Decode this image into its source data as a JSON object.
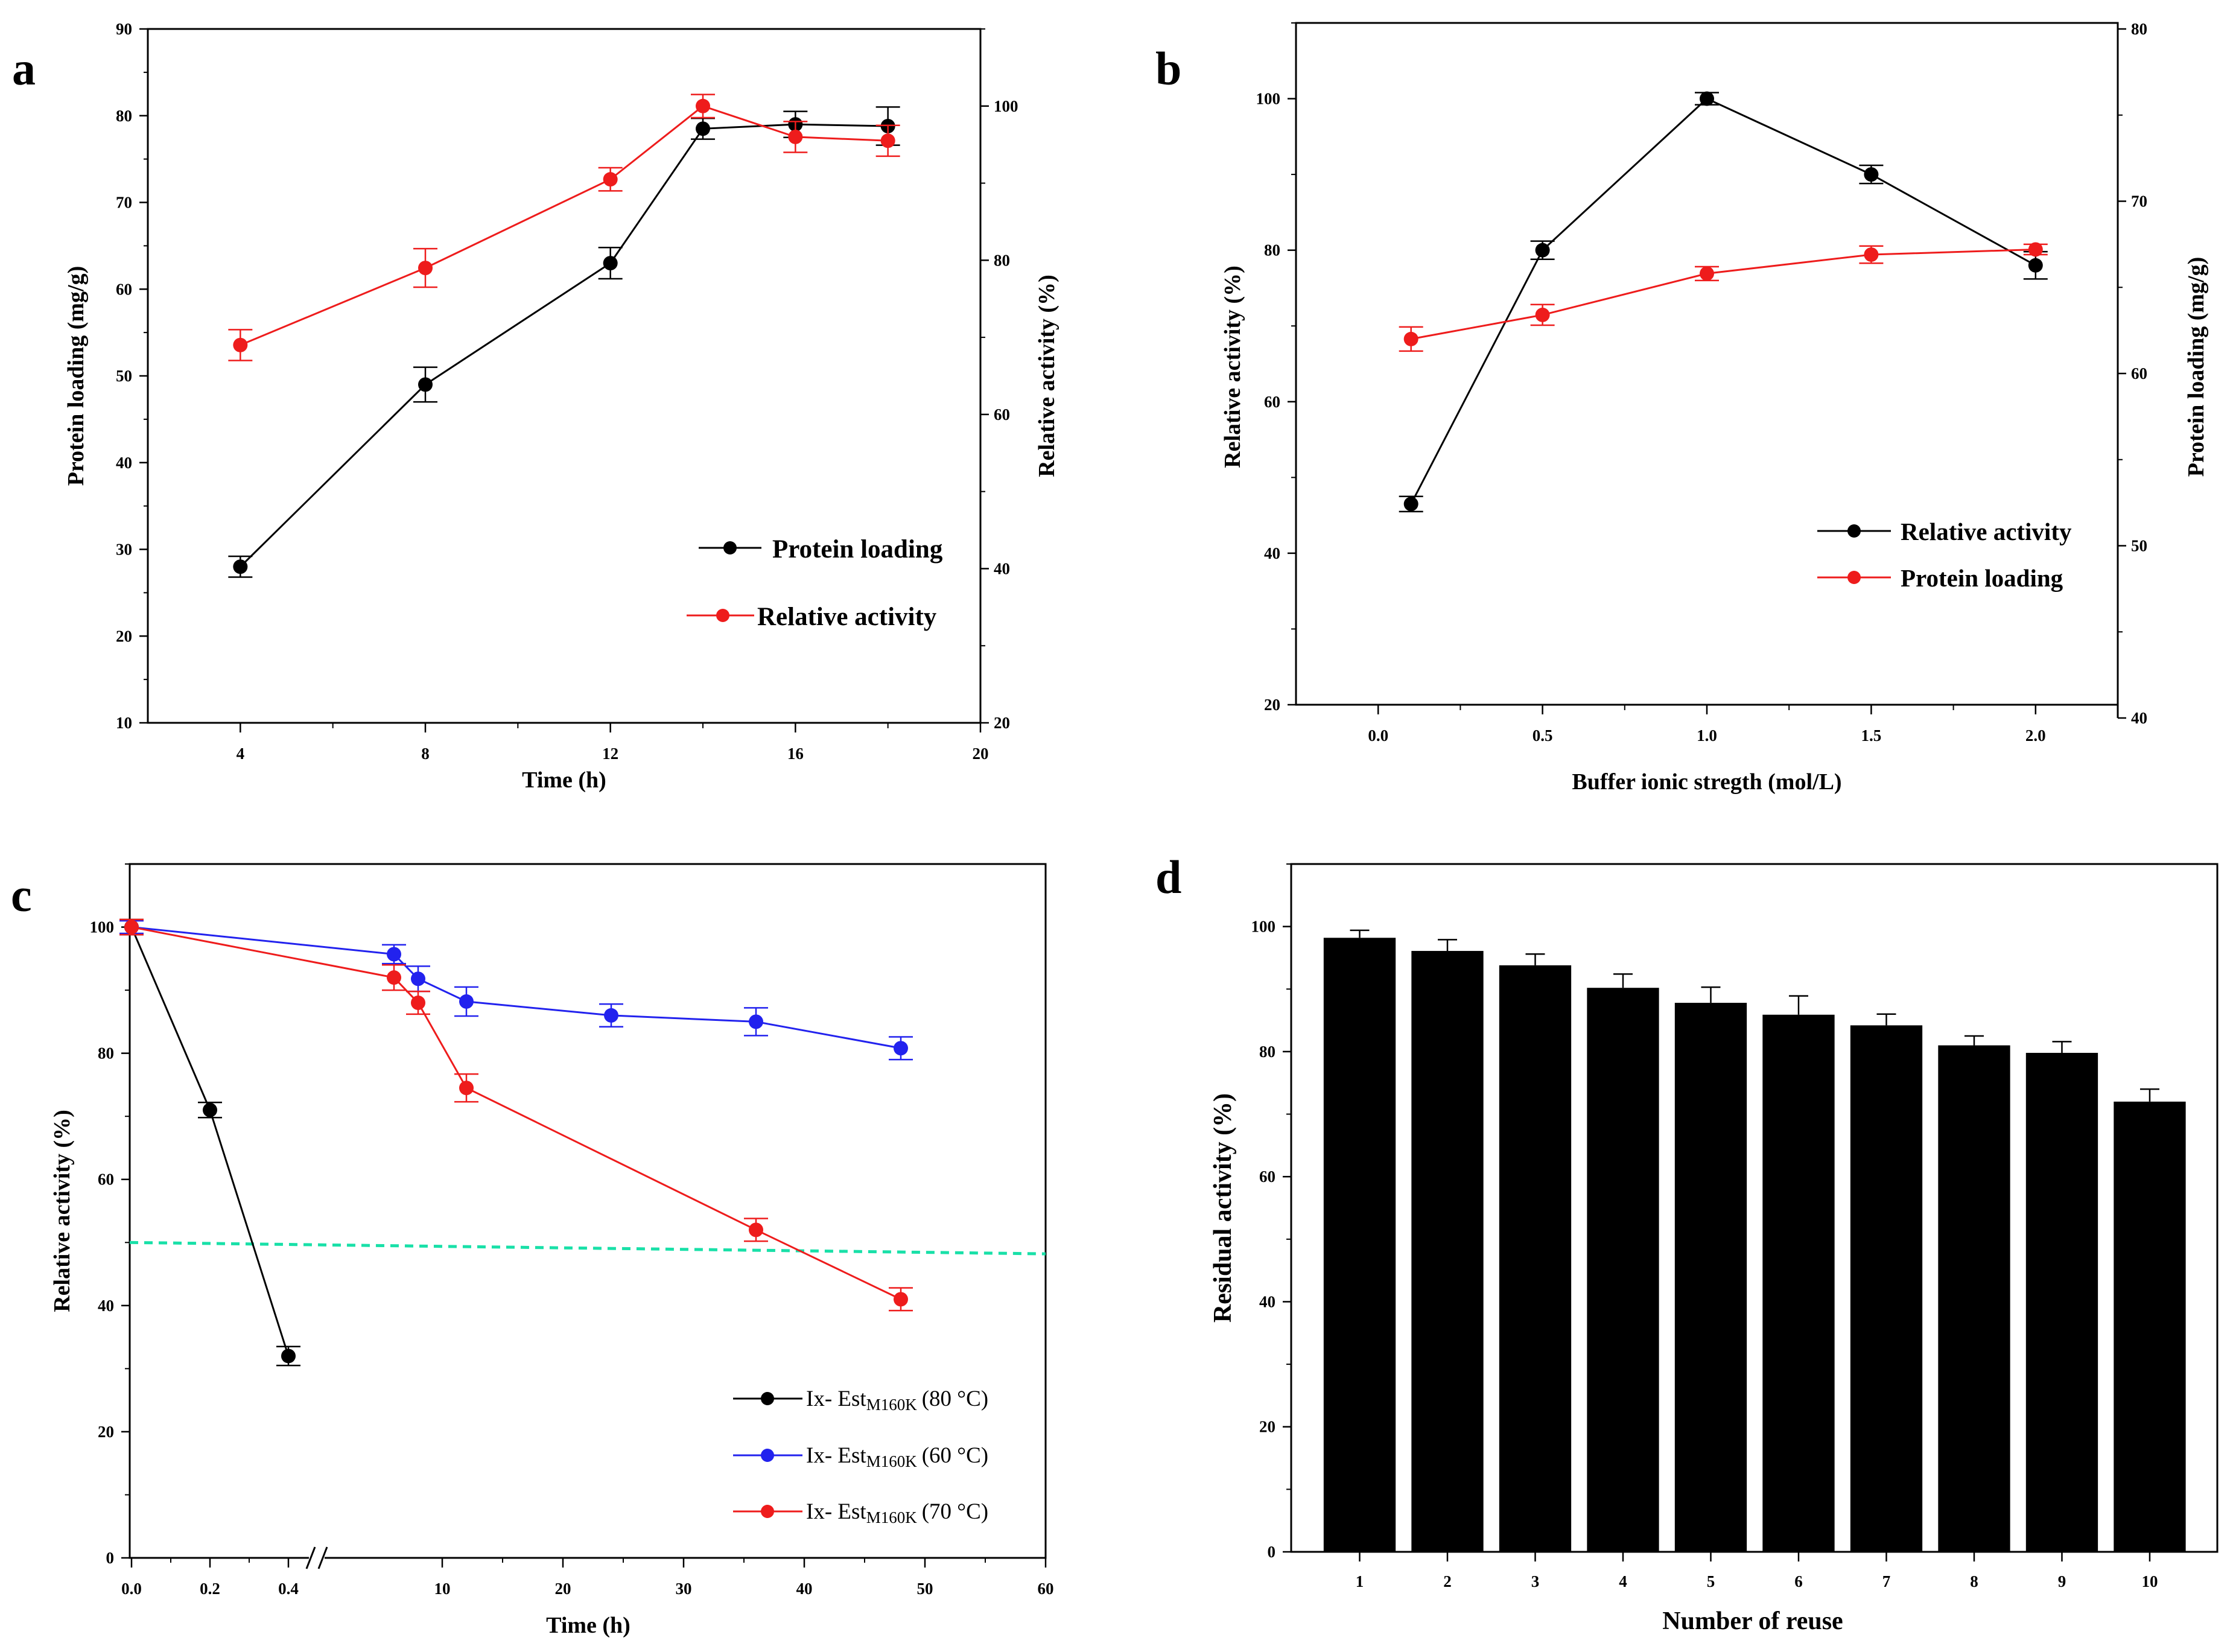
{
  "figure": {
    "colors": {
      "black": "#000000",
      "red": "#ee1c1c",
      "blue": "#2222ee",
      "cyan": "#19e0a8",
      "bar": "#000000"
    }
  },
  "chart_data": [
    {
      "id": "a",
      "panel_label": "a",
      "type": "line",
      "xlabel": "Time (h)",
      "ylabel_left": "Protein loading (mg/g)",
      "ylabel_right": "Relative activity (%)",
      "xlim": [
        2,
        20
      ],
      "xticks": [
        "4",
        "8",
        "12",
        "16",
        "20"
      ],
      "ylim_left": [
        10,
        90
      ],
      "yticks_left": [
        "10",
        "20",
        "30",
        "40",
        "50",
        "60",
        "70",
        "80",
        "90"
      ],
      "ylim_right": [
        20,
        110
      ],
      "yticks_right": [
        "20",
        "40",
        "60",
        "80",
        "100"
      ],
      "series": [
        {
          "name": "Protein loading",
          "color": "#000000",
          "axis": "left",
          "x": [
            4,
            8,
            12,
            14,
            16,
            18
          ],
          "values": [
            28,
            49,
            63,
            78.5,
            79,
            78.8
          ],
          "errors": [
            1.2,
            2.0,
            1.8,
            1.2,
            1.5,
            2.2
          ]
        },
        {
          "name": "Relative activity",
          "color": "#ee1c1c",
          "axis": "right",
          "x": [
            4,
            8,
            12,
            14,
            16,
            18
          ],
          "values": [
            69,
            79,
            90.5,
            100,
            96,
            95.5
          ],
          "errors": [
            2,
            2.5,
            1.5,
            1.5,
            2,
            2
          ]
        }
      ]
    },
    {
      "id": "b",
      "panel_label": "b",
      "type": "line",
      "xlabel": "Buffer ionic stregth (mol/L)",
      "ylabel_left": "Relative activity (%)",
      "ylabel_right": "Protein loading (mg/g)",
      "xlim": [
        -0.25,
        2.25
      ],
      "xticks": [
        "0.0",
        "0.5",
        "1.0",
        "1.5",
        "2.0"
      ],
      "ylim_left": [
        20,
        110
      ],
      "yticks_left": [
        "20",
        "40",
        "60",
        "80",
        "100"
      ],
      "ylim_right": [
        40,
        80
      ],
      "yticks_right": [
        "40",
        "50",
        "60",
        "70",
        "80"
      ],
      "series": [
        {
          "name": "Relative activity",
          "color": "#000000",
          "axis": "left",
          "x": [
            0.1,
            0.5,
            1.0,
            1.5,
            2.0
          ],
          "values": [
            46.5,
            80,
            100,
            90,
            78
          ],
          "errors": [
            1,
            1.2,
            0.8,
            1.2,
            1.8
          ]
        },
        {
          "name": "Protein loading",
          "color": "#ee1c1c",
          "axis": "right",
          "x": [
            0.1,
            0.5,
            1.0,
            1.5,
            2.0
          ],
          "values": [
            62,
            63.4,
            65.8,
            66.9,
            67.2
          ],
          "errors": [
            0.7,
            0.6,
            0.4,
            0.5,
            0.3
          ]
        }
      ]
    },
    {
      "id": "c",
      "panel_label": "c",
      "type": "line",
      "xlabel": "Time (h)",
      "ylabel": "Relative activity (%)",
      "xticks_break_left": [
        "0.0",
        "0.2",
        "0.4"
      ],
      "xticks_break_right": [
        "10",
        "20",
        "30",
        "40",
        "50",
        "60"
      ],
      "ylim": [
        0,
        110
      ],
      "yticks": [
        "0",
        "20",
        "40",
        "60",
        "80",
        "100"
      ],
      "reference_line": {
        "y_start": 50,
        "y_end": 48.2,
        "style": "dashed"
      },
      "series": [
        {
          "name": "Ix- Est",
          "subscript": "M160K",
          "condition": "(80 °C)",
          "color": "#000000",
          "x": [
            0,
            0.2,
            0.4
          ],
          "values": [
            100,
            71,
            32
          ],
          "errors": [
            1.2,
            1.2,
            1.5
          ]
        },
        {
          "name": "Ix- Est",
          "subscript": "M160K",
          "condition": "(60 °C)",
          "color": "#2222ee",
          "x": [
            0,
            6,
            8,
            12,
            24,
            36,
            48
          ],
          "values": [
            100,
            95.7,
            91.8,
            88.2,
            86,
            85,
            80.8
          ],
          "errors": [
            1,
            1.5,
            2,
            2.3,
            1.8,
            2.2,
            1.8
          ]
        },
        {
          "name": "Ix- Est",
          "subscript": "M160K",
          "condition": "(70 °C)",
          "color": "#ee1c1c",
          "x": [
            0,
            6,
            8,
            12,
            36,
            48
          ],
          "values": [
            100,
            92,
            88,
            74.5,
            52,
            41
          ],
          "errors": [
            1.2,
            2,
            1.8,
            2.2,
            1.8,
            1.8
          ]
        }
      ]
    },
    {
      "id": "d",
      "panel_label": "d",
      "type": "bar",
      "xlabel": "Number of reuse",
      "ylabel": "Residual activity (%)",
      "categories": [
        "1",
        "2",
        "3",
        "4",
        "5",
        "6",
        "7",
        "8",
        "9",
        "10"
      ],
      "values": [
        98.2,
        96.1,
        93.8,
        90.2,
        87.8,
        85.9,
        84.2,
        81,
        79.8,
        72
      ],
      "errors": [
        1.2,
        1.8,
        1.8,
        2.2,
        2.5,
        3,
        1.8,
        1.5,
        1.8,
        2
      ],
      "ylim": [
        0,
        110
      ],
      "yticks": [
        "0",
        "20",
        "40",
        "60",
        "80",
        "100"
      ]
    }
  ]
}
